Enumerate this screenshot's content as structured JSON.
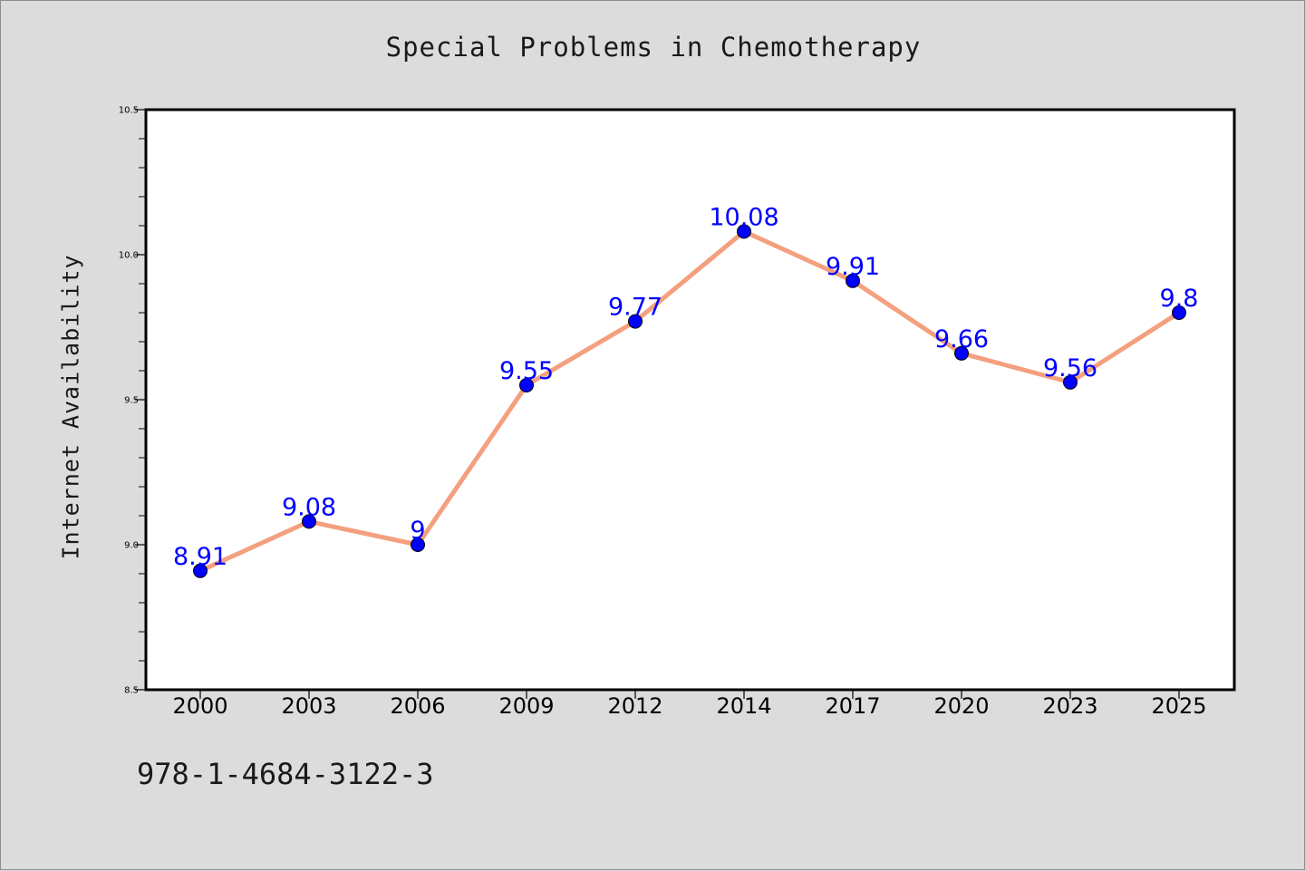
{
  "chart_data": {
    "type": "line",
    "title": "Special Problems in Chemotherapy",
    "xlabel": "",
    "ylabel": "Internet Availability",
    "categories": [
      "2000",
      "2003",
      "2006",
      "2009",
      "2012",
      "2014",
      "2017",
      "2020",
      "2023",
      "2025"
    ],
    "series": [
      {
        "values": [
          8.91,
          9.08,
          9,
          9.55,
          9.77,
          10.08,
          9.91,
          9.66,
          9.56,
          9.8
        ],
        "labels": [
          "8.91",
          "9.08",
          "9",
          "9.55",
          "9.77",
          "10.08",
          "9.91",
          "9.66",
          "9.56",
          "9.8"
        ],
        "line_color": "#f4a07e",
        "marker_color": "#0000ff"
      }
    ],
    "ylim": [
      8.5,
      10.5
    ],
    "yticks": [
      "8.5",
      "9.0",
      "9.5",
      "10.0",
      "10.5"
    ],
    "grid": false,
    "legend": "none"
  },
  "footer": {
    "code": "978-1-4684-3122-3"
  },
  "colors": {
    "background": "#dcdcdc",
    "plot_background": "#ffffff",
    "label_color": "#0000ff"
  }
}
